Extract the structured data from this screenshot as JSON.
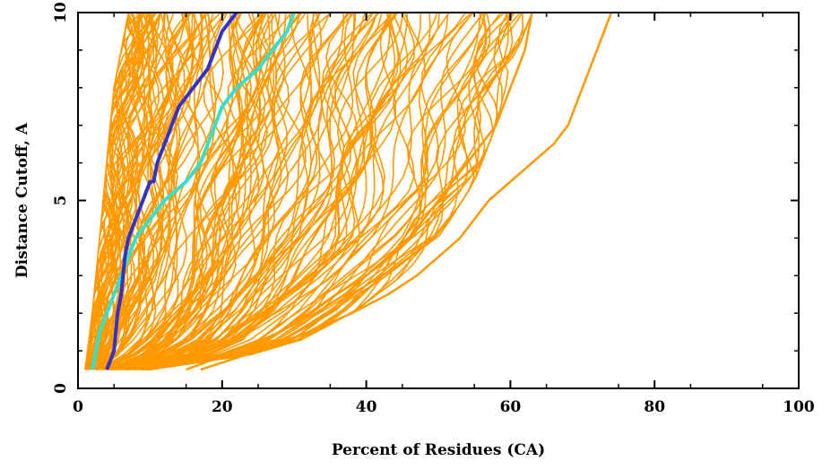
{
  "chart_data": {
    "type": "line",
    "title": "",
    "xlabel": "Percent of Residues (CA)",
    "ylabel": "Distance Cutoff, A",
    "xlim": [
      0,
      100
    ],
    "ylim": [
      0,
      10
    ],
    "xticks": [
      0,
      20,
      40,
      60,
      80,
      100
    ],
    "yticks": [
      0,
      5,
      10
    ],
    "grid": false,
    "legend": "none",
    "colors": {
      "ensemble": "#FF9900",
      "highlight_dark": "#3333CC",
      "highlight_light": "#33E0D0"
    },
    "ensemble_boundary": {
      "left_edge": [
        [
          1,
          0.5
        ],
        [
          2,
          2
        ],
        [
          3,
          4
        ],
        [
          4,
          6
        ],
        [
          5,
          8
        ],
        [
          7,
          10
        ]
      ],
      "right_edge": [
        [
          10,
          0.5
        ],
        [
          20,
          0.7
        ],
        [
          30,
          1.2
        ],
        [
          38,
          2
        ],
        [
          45,
          3
        ],
        [
          50,
          4
        ],
        [
          55,
          5.5
        ],
        [
          58,
          7
        ],
        [
          60,
          8.5
        ],
        [
          63,
          10
        ]
      ]
    },
    "series": [
      {
        "x": [
          4,
          5,
          5.5,
          6,
          6.5,
          7,
          8,
          9,
          10,
          10.5,
          11,
          12,
          14,
          16,
          18,
          19,
          20,
          22
        ],
        "y": [
          0.5,
          1,
          2,
          2.5,
          3.5,
          4,
          4.5,
          5,
          5.5,
          5.5,
          6,
          6.5,
          7.5,
          8,
          8.5,
          9,
          9.5,
          10
        ]
      },
      {
        "x": [
          2,
          3,
          4,
          5,
          6,
          7,
          8,
          10,
          12,
          15,
          17,
          18,
          19,
          20,
          22,
          25,
          27,
          29,
          30
        ],
        "y": [
          0.5,
          1.5,
          2,
          2.5,
          3,
          3.5,
          4,
          4.5,
          5,
          5.5,
          6,
          6.5,
          7,
          7.5,
          8,
          8.5,
          9,
          9.5,
          10
        ]
      },
      {
        "x": [
          17,
          25,
          32,
          38,
          43,
          47,
          50,
          53,
          55,
          57,
          60,
          63,
          66,
          68,
          70,
          72,
          73,
          74
        ],
        "y": [
          0.5,
          1,
          1.5,
          2,
          2.5,
          3,
          3.5,
          4,
          4.5,
          5,
          5.5,
          6,
          6.5,
          7,
          8,
          9,
          9.5,
          10
        ]
      },
      {
        "x": [
          15,
          22,
          28,
          33,
          37,
          40,
          43,
          46,
          48,
          50,
          52,
          54,
          56,
          58,
          60,
          62,
          63
        ],
        "y": [
          0.5,
          1,
          1.5,
          2,
          2.5,
          3,
          3.5,
          4,
          4.5,
          5,
          5.5,
          6,
          6.5,
          7,
          8,
          9,
          10
        ]
      }
    ]
  }
}
